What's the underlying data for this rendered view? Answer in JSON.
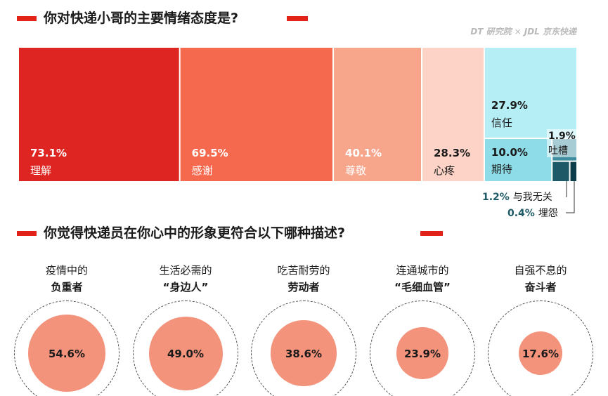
{
  "brand": {
    "dt": "DT 研究院",
    "sep": "×",
    "jdl": "JDL 京东快递"
  },
  "section1": {
    "title": "你对快递小哥的主要情绪态度是?"
  },
  "section2": {
    "title": "你觉得快递员在你心中的形象更符合以下哪种描述?"
  },
  "colors": {
    "accent": "#e2231a",
    "circle_fill": "#f4937c"
  },
  "chart_data": [
    {
      "type": "treemap",
      "title": "你对快递小哥的主要情绪态度是?",
      "items": [
        {
          "label": "理解",
          "value": 73.1,
          "display": "73.1%",
          "color": "#df2521"
        },
        {
          "label": "感谢",
          "value": 69.5,
          "display": "69.5%",
          "color": "#f56a4f"
        },
        {
          "label": "尊敬",
          "value": 40.1,
          "display": "40.1%",
          "color": "#f7a68c"
        },
        {
          "label": "心疼",
          "value": 28.3,
          "display": "28.3%",
          "color": "#fcd3c6"
        },
        {
          "label": "信任",
          "value": 27.9,
          "display": "27.9%",
          "color": "#b5eef5"
        },
        {
          "label": "期待",
          "value": 10.0,
          "display": "10.0%",
          "color": "#8edce8"
        },
        {
          "label": "吐槽",
          "value": 1.9,
          "display": "1.9%",
          "color": "#3f8ea0"
        },
        {
          "label": "与我无关",
          "value": 1.2,
          "display": "1.2%",
          "color": "#1d5966"
        },
        {
          "label": "埋怨",
          "value": 0.4,
          "display": "0.4%",
          "color": "#0d3d48"
        }
      ]
    },
    {
      "type": "bubble",
      "title": "你觉得快递员在你心中的形象更符合以下哪种描述?",
      "items": [
        {
          "line1": "疫情中的",
          "line2": "负重者",
          "value": 54.6,
          "display": "54.6%"
        },
        {
          "line1": "生活必需的",
          "line2": "“身边人”",
          "value": 49.0,
          "display": "49.0%"
        },
        {
          "line1": "吃苦耐劳的",
          "line2": "劳动者",
          "value": 38.6,
          "display": "38.6%"
        },
        {
          "line1": "连通城市的",
          "line2": "“毛细血管”",
          "value": 23.9,
          "display": "23.9%"
        },
        {
          "line1": "自强不息的",
          "line2": "奋斗者",
          "value": 17.6,
          "display": "17.6%"
        }
      ]
    }
  ]
}
